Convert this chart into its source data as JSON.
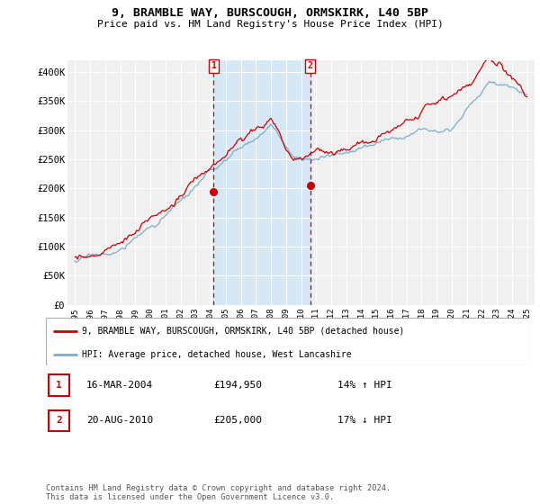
{
  "title": "9, BRAMBLE WAY, BURSCOUGH, ORMSKIRK, L40 5BP",
  "subtitle": "Price paid vs. HM Land Registry's House Price Index (HPI)",
  "ylim": [
    0,
    420000
  ],
  "yticks": [
    0,
    50000,
    100000,
    150000,
    200000,
    250000,
    300000,
    350000,
    400000
  ],
  "ytick_labels": [
    "£0",
    "£50K",
    "£100K",
    "£150K",
    "£200K",
    "£250K",
    "£300K",
    "£350K",
    "£400K"
  ],
  "legend_line1": "9, BRAMBLE WAY, BURSCOUGH, ORMSKIRK, L40 5BP (detached house)",
  "legend_line2": "HPI: Average price, detached house, West Lancashire",
  "line1_color": "#cc0000",
  "line2_color": "#7aadcc",
  "shade_color": "#d6e8f5",
  "sale1_date": "16-MAR-2004",
  "sale1_price": "£194,950",
  "sale1_hpi": "14% ↑ HPI",
  "sale2_date": "20-AUG-2010",
  "sale2_price": "£205,000",
  "sale2_hpi": "17% ↓ HPI",
  "footer": "Contains HM Land Registry data © Crown copyright and database right 2024.\nThis data is licensed under the Open Government Licence v3.0.",
  "background_color": "#ffffff",
  "plot_bg_color": "#f0f0f0"
}
